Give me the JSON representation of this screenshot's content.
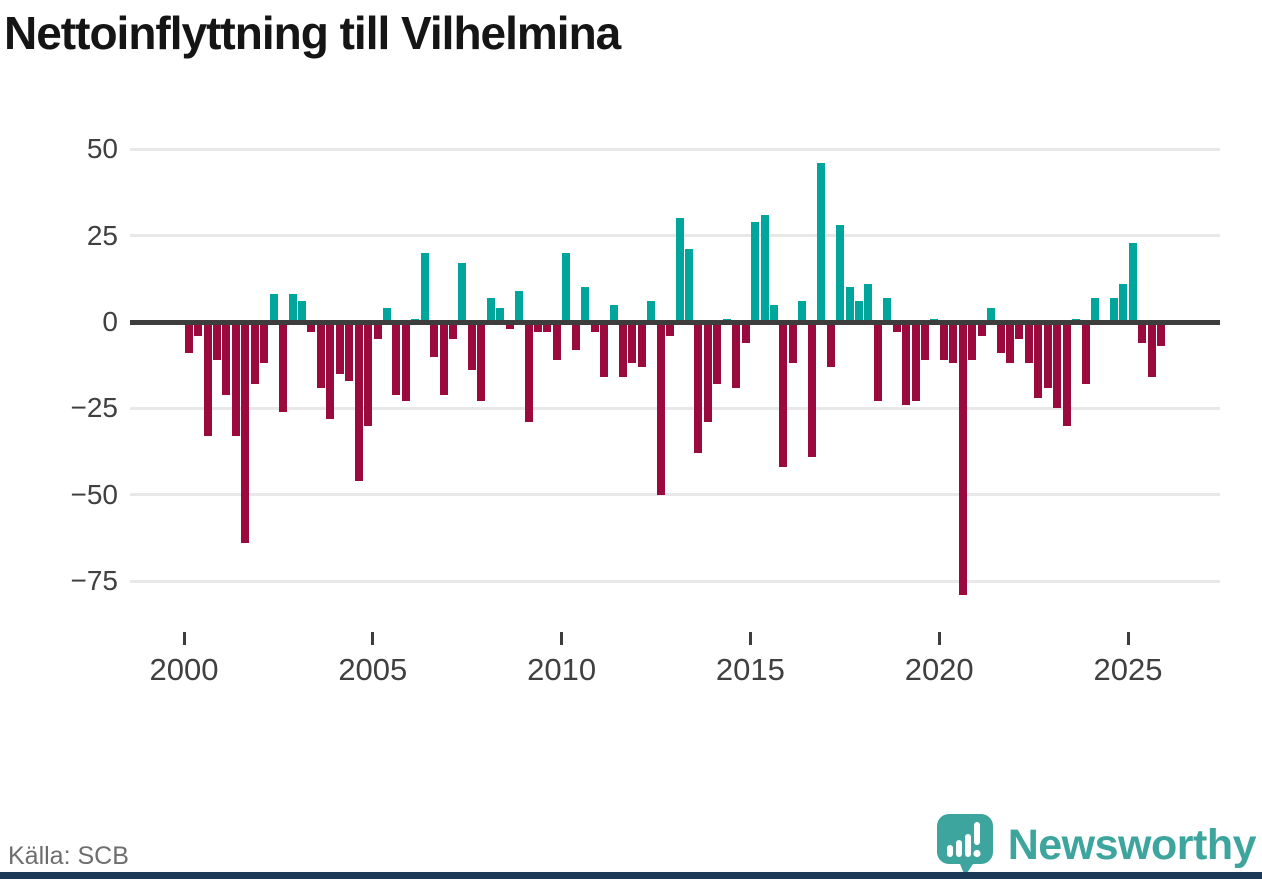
{
  "page": {
    "title": "Nettoinflyttning till Vilhelmina"
  },
  "footer": {
    "source": "Källa: SCB",
    "brand": "Newsworthy"
  },
  "colors": {
    "positive": "#00a69c",
    "negative": "#9b0a3c",
    "zero_line": "#3d3d3d",
    "gridline": "#e8e8e8",
    "brand_teal": "#3da59d",
    "bottom_strip": "#1c3a57"
  },
  "chart_data": {
    "type": "bar",
    "title": "Nettoinflyttning till Vilhelmina",
    "frequency": "quarterly",
    "x_start": "2000-Q1",
    "x_end": "2025-Q4",
    "xlabel": "",
    "ylabel": "",
    "grid": true,
    "legend": false,
    "ylim": [
      -85,
      55
    ],
    "y_ticks": [
      50,
      25,
      0,
      -25,
      -50,
      -75
    ],
    "x_ticks": [
      2000,
      2005,
      2010,
      2015,
      2020,
      2025
    ],
    "values_by_year": {
      "2000": [
        -9,
        -4,
        -33,
        -11
      ],
      "2001": [
        -21,
        -33,
        -64,
        -18
      ],
      "2002": [
        -12,
        8,
        -26,
        8
      ],
      "2003": [
        6,
        -3,
        -19,
        -28
      ],
      "2004": [
        -15,
        -17,
        -46,
        -30
      ],
      "2005": [
        -5,
        4,
        -21,
        -23
      ],
      "2006": [
        1,
        20,
        -10,
        -21
      ],
      "2007": [
        -5,
        17,
        -14,
        -23
      ],
      "2008": [
        7,
        4,
        -2,
        9
      ],
      "2009": [
        -29,
        -3,
        -3,
        -11
      ],
      "2010": [
        20,
        -8,
        10,
        -3
      ],
      "2011": [
        -16,
        5,
        -16,
        -12
      ],
      "2012": [
        -13,
        6,
        -50,
        -4
      ],
      "2013": [
        30,
        21,
        -38,
        -29
      ],
      "2014": [
        -18,
        1,
        -19,
        -6
      ],
      "2015": [
        29,
        31,
        5,
        -42
      ],
      "2016": [
        -12,
        6,
        -39,
        46
      ],
      "2017": [
        -13,
        28,
        10,
        6
      ],
      "2018": [
        11,
        -23,
        7,
        -3
      ],
      "2019": [
        -24,
        -23,
        -11,
        1
      ],
      "2020": [
        -11,
        -12,
        -79,
        -11
      ],
      "2021": [
        -4,
        4,
        -9,
        -12
      ],
      "2022": [
        -5,
        -12,
        -22,
        -19
      ],
      "2023": [
        -25,
        -30,
        1,
        -18
      ],
      "2024": [
        7,
        -1,
        7,
        11
      ],
      "2025": [
        23,
        -6,
        -16,
        -7
      ]
    }
  }
}
